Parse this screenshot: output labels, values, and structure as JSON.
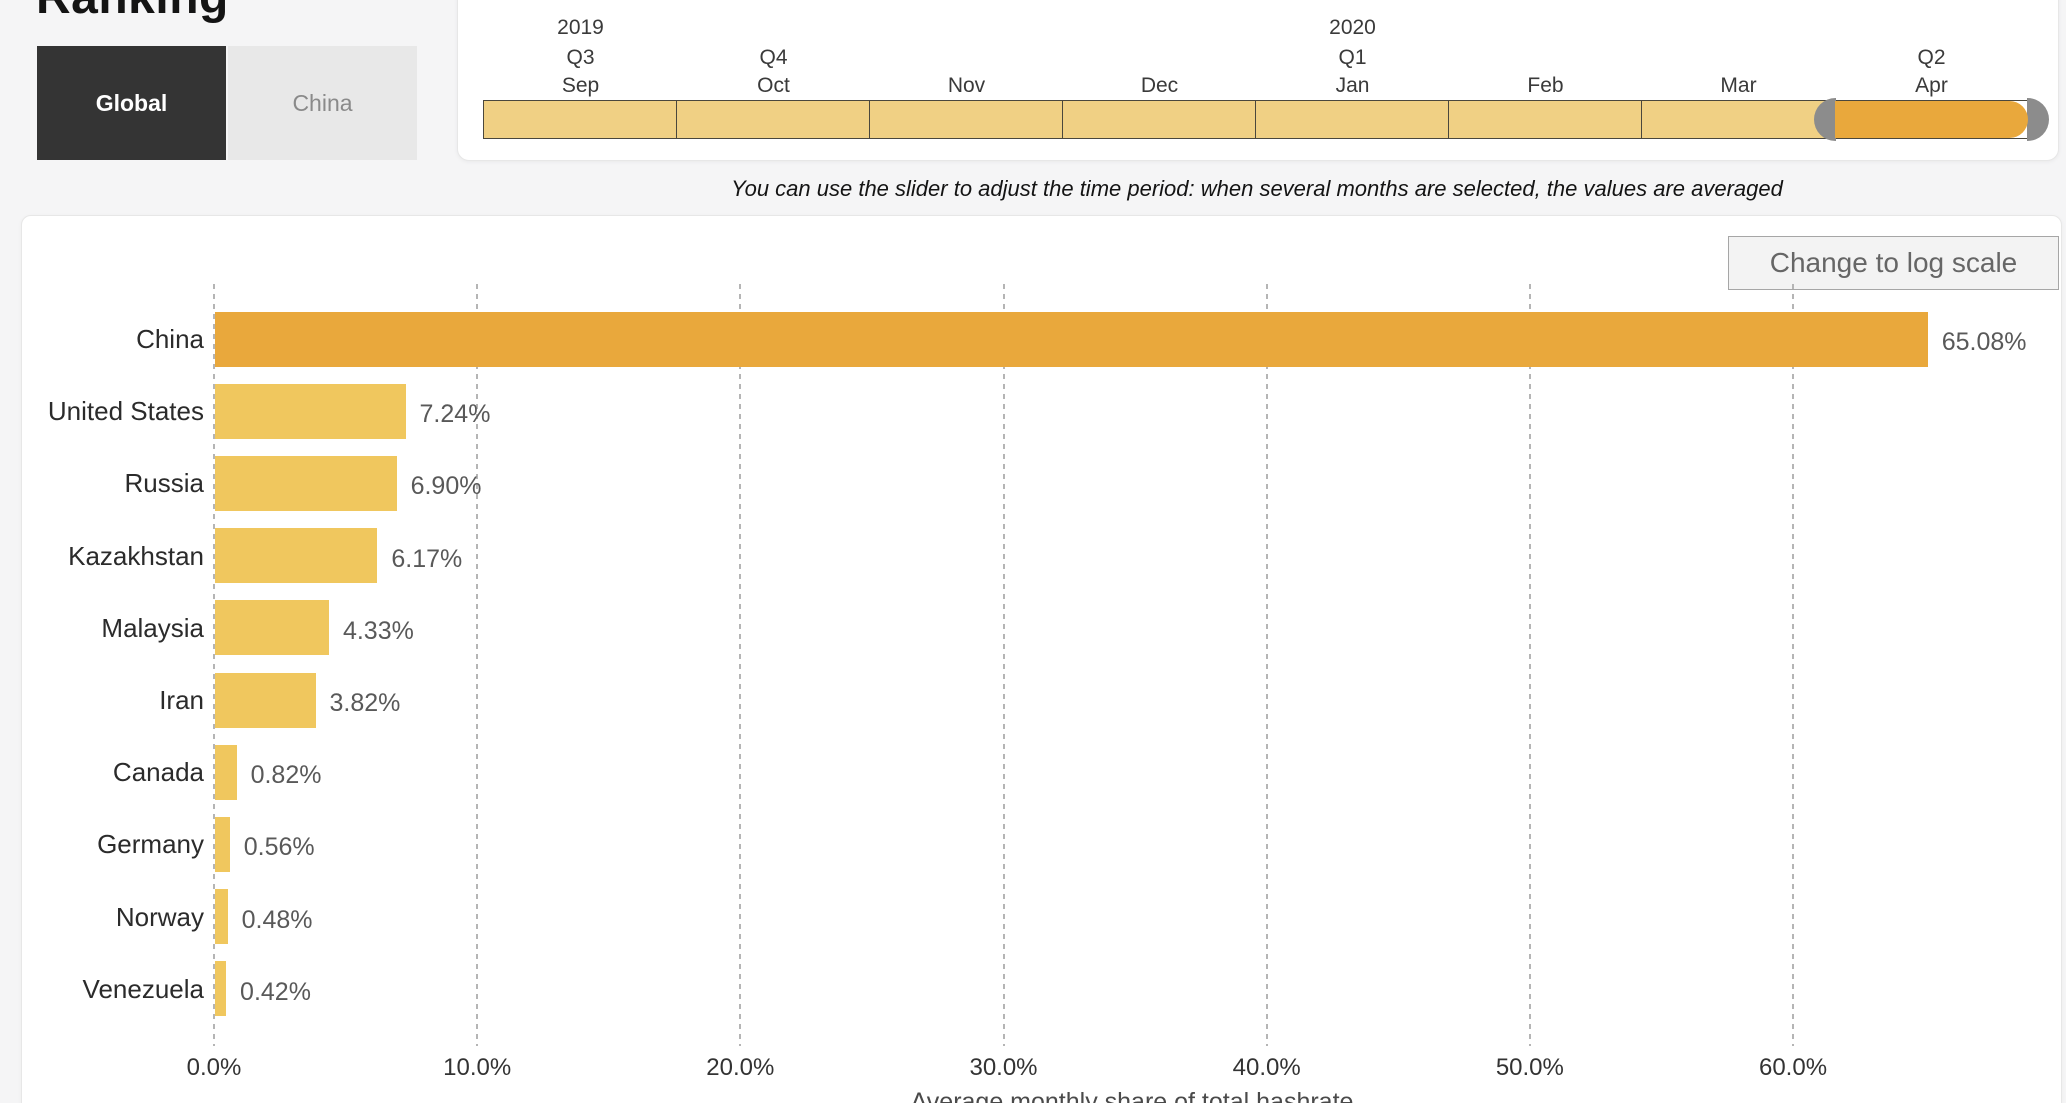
{
  "page": {
    "title": "Ranking"
  },
  "view_toggle": {
    "options": [
      {
        "label": "Global",
        "selected": true
      },
      {
        "label": "China",
        "selected": false
      }
    ]
  },
  "time_slider": {
    "hint": "You can use the slider to adjust the time period: when several months are selected, the values are averaged",
    "months": [
      {
        "month": "Sep",
        "quarter": "Q3",
        "year": "2019",
        "selected": false
      },
      {
        "month": "Oct",
        "quarter": "Q4",
        "year": "",
        "selected": false
      },
      {
        "month": "Nov",
        "quarter": "",
        "year": "",
        "selected": false
      },
      {
        "month": "Dec",
        "quarter": "",
        "year": "",
        "selected": false
      },
      {
        "month": "Jan",
        "quarter": "Q1",
        "year": "2020",
        "selected": false
      },
      {
        "month": "Feb",
        "quarter": "",
        "year": "",
        "selected": false
      },
      {
        "month": "Mar",
        "quarter": "",
        "year": "",
        "selected": false
      },
      {
        "month": "Apr",
        "quarter": "Q2",
        "year": "",
        "selected": true
      }
    ]
  },
  "chart_controls": {
    "log_scale_button": "Change to log scale"
  },
  "chart_data": {
    "type": "bar",
    "orientation": "horizontal",
    "categories": [
      "China",
      "United States",
      "Russia",
      "Kazakhstan",
      "Malaysia",
      "Iran",
      "Canada",
      "Germany",
      "Norway",
      "Venezuela"
    ],
    "values": [
      65.08,
      7.24,
      6.9,
      6.17,
      4.33,
      3.82,
      0.82,
      0.56,
      0.48,
      0.42
    ],
    "value_labels": [
      "65.08%",
      "7.24%",
      "6.90%",
      "6.17%",
      "4.33%",
      "3.82%",
      "0.82%",
      "0.56%",
      "0.48%",
      "0.42%"
    ],
    "xlabel": "Average monthly share of total hashrate",
    "x_tick_values": [
      0,
      10,
      20,
      30,
      40,
      50,
      60
    ],
    "x_tick_labels": [
      "0.0%",
      "10.0%",
      "20.0%",
      "30.0%",
      "40.0%",
      "50.0%",
      "60.0%"
    ],
    "xlim": [
      0,
      69
    ],
    "grid": "vertical-dashed",
    "legend": "none",
    "highlight_category": "China",
    "colors": {
      "bar": "#f0c75e",
      "highlight": "#e9a83c"
    }
  },
  "colors": {
    "segment": "#f0d084",
    "selected_segment": "#e9a83c",
    "segment_border": "#4a473d",
    "slider_handle": "#8c8c8c",
    "gridline": "#b5b5b5",
    "dark_button": "#343434"
  }
}
